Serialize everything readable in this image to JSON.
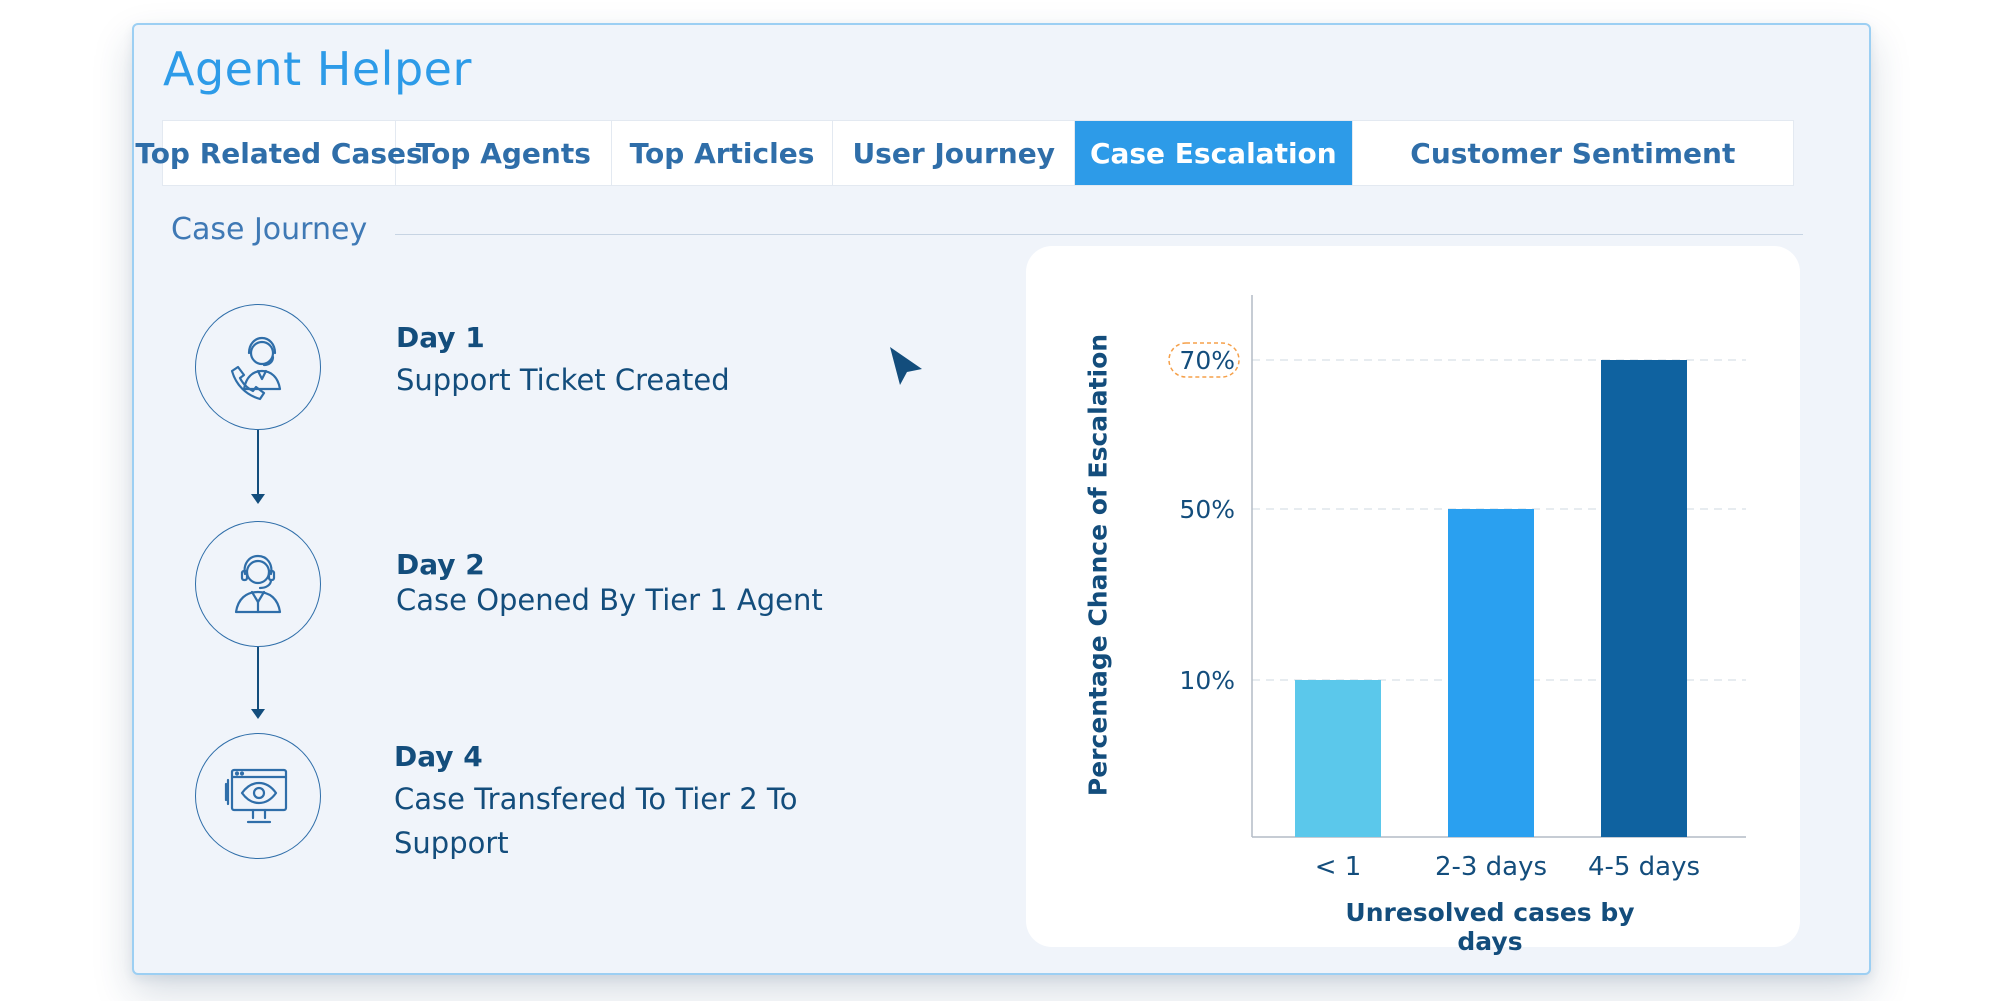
{
  "app": {
    "title": "Agent Helper"
  },
  "tabs": [
    {
      "label": "Top Related Cases",
      "active": false
    },
    {
      "label": "Top Agents",
      "active": false
    },
    {
      "label": "Top Articles",
      "active": false
    },
    {
      "label": "User Journey",
      "active": false
    },
    {
      "label": "Case Escalation",
      "active": true
    },
    {
      "label": "Customer Sentiment",
      "active": false
    }
  ],
  "journey": {
    "title": "Case Journey",
    "steps": [
      {
        "day": "Day 1",
        "description": "Support Ticket Created",
        "icon": "agent-phone-icon"
      },
      {
        "day": "Day 2",
        "description": "Case Opened By Tier 1 Agent",
        "icon": "agent-headset-icon"
      },
      {
        "day": "Day 4",
        "description_line1": "Case Transfered To Tier 2 To",
        "description_line2": "Support",
        "icon": "monitor-eye-icon"
      }
    ]
  },
  "colors": {
    "accent": "#2d9be8",
    "dark_blue": "#134d7c",
    "bar_light": "#5bc8eb",
    "bar_mid": "#2aa0f0",
    "bar_dark": "#0f62a0",
    "highlight_border": "#f5a04a"
  },
  "chart_data": {
    "type": "bar",
    "categories": [
      "< 1",
      "2-3 days",
      "4-5 days"
    ],
    "values": [
      10,
      50,
      70
    ],
    "y_ticks": [
      "10%",
      "50%",
      "70%"
    ],
    "highlighted_tick": "70%",
    "ylabel": "Percentage Chance of Escalation",
    "xlabel": "Unresolved cases by days",
    "grid": "dashed horizontal at tick values",
    "legend": "none"
  }
}
